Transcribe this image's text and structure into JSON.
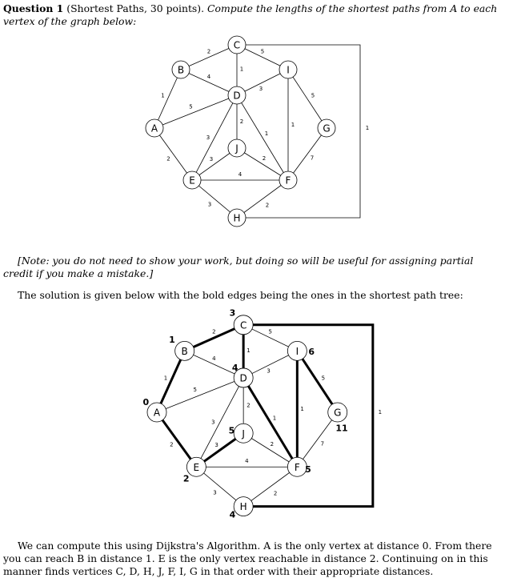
{
  "question": {
    "heading": "Question 1",
    "meta": "(Shortest Paths, 30 points).",
    "prompt": "Compute the lengths of the shortest paths from A to each vertex of the graph below:"
  },
  "note": "[Note: you do not need to show your work, but doing so will be useful for assigning partial credit if you make a mistake.]",
  "solution_intro": "The solution is given below with the bold edges being the ones in the shortest path tree:",
  "explanation": "We can compute this using Dijkstra's Algorithm. A is the only vertex at distance 0. From there you can reach B in distance 1. E is the only vertex reachable in distance 2. Continuing on in this manner finds vertices C, D, H, J, F, I, G in that order with their appropriate distances.",
  "graph": {
    "vertices": [
      "A",
      "B",
      "C",
      "D",
      "E",
      "F",
      "G",
      "H",
      "I",
      "J"
    ],
    "edges": [
      {
        "u": "A",
        "v": "B",
        "w": "1"
      },
      {
        "u": "A",
        "v": "D",
        "w": "5"
      },
      {
        "u": "A",
        "v": "E",
        "w": "2"
      },
      {
        "u": "B",
        "v": "C",
        "w": "2"
      },
      {
        "u": "B",
        "v": "D",
        "w": "4"
      },
      {
        "u": "C",
        "v": "D",
        "w": "1"
      },
      {
        "u": "C",
        "v": "I",
        "w": "5"
      },
      {
        "u": "C",
        "v": "H",
        "w": "1"
      },
      {
        "u": "D",
        "v": "I",
        "w": "3"
      },
      {
        "u": "D",
        "v": "J",
        "w": "2"
      },
      {
        "u": "D",
        "v": "E",
        "w": "3"
      },
      {
        "u": "D",
        "v": "F",
        "w": "1"
      },
      {
        "u": "I",
        "v": "F",
        "w": "1"
      },
      {
        "u": "I",
        "v": "G",
        "w": "5"
      },
      {
        "u": "G",
        "v": "F",
        "w": "7"
      },
      {
        "u": "J",
        "v": "E",
        "w": "3"
      },
      {
        "u": "J",
        "v": "F",
        "w": "2"
      },
      {
        "u": "E",
        "v": "F",
        "w": "4"
      },
      {
        "u": "E",
        "v": "H",
        "w": "3"
      },
      {
        "u": "F",
        "v": "H",
        "w": "2"
      }
    ]
  },
  "solution": {
    "distances": {
      "A": "0",
      "B": "1",
      "C": "3",
      "D": "4",
      "E": "2",
      "F": "5",
      "G": "11",
      "H": "4",
      "I": "6",
      "J": "5"
    },
    "tree_edges": [
      [
        "A",
        "B"
      ],
      [
        "A",
        "E"
      ],
      [
        "B",
        "C"
      ],
      [
        "C",
        "D"
      ],
      [
        "C",
        "H"
      ],
      [
        "D",
        "F"
      ],
      [
        "E",
        "J"
      ],
      [
        "I",
        "F"
      ],
      [
        "I",
        "G"
      ]
    ]
  }
}
